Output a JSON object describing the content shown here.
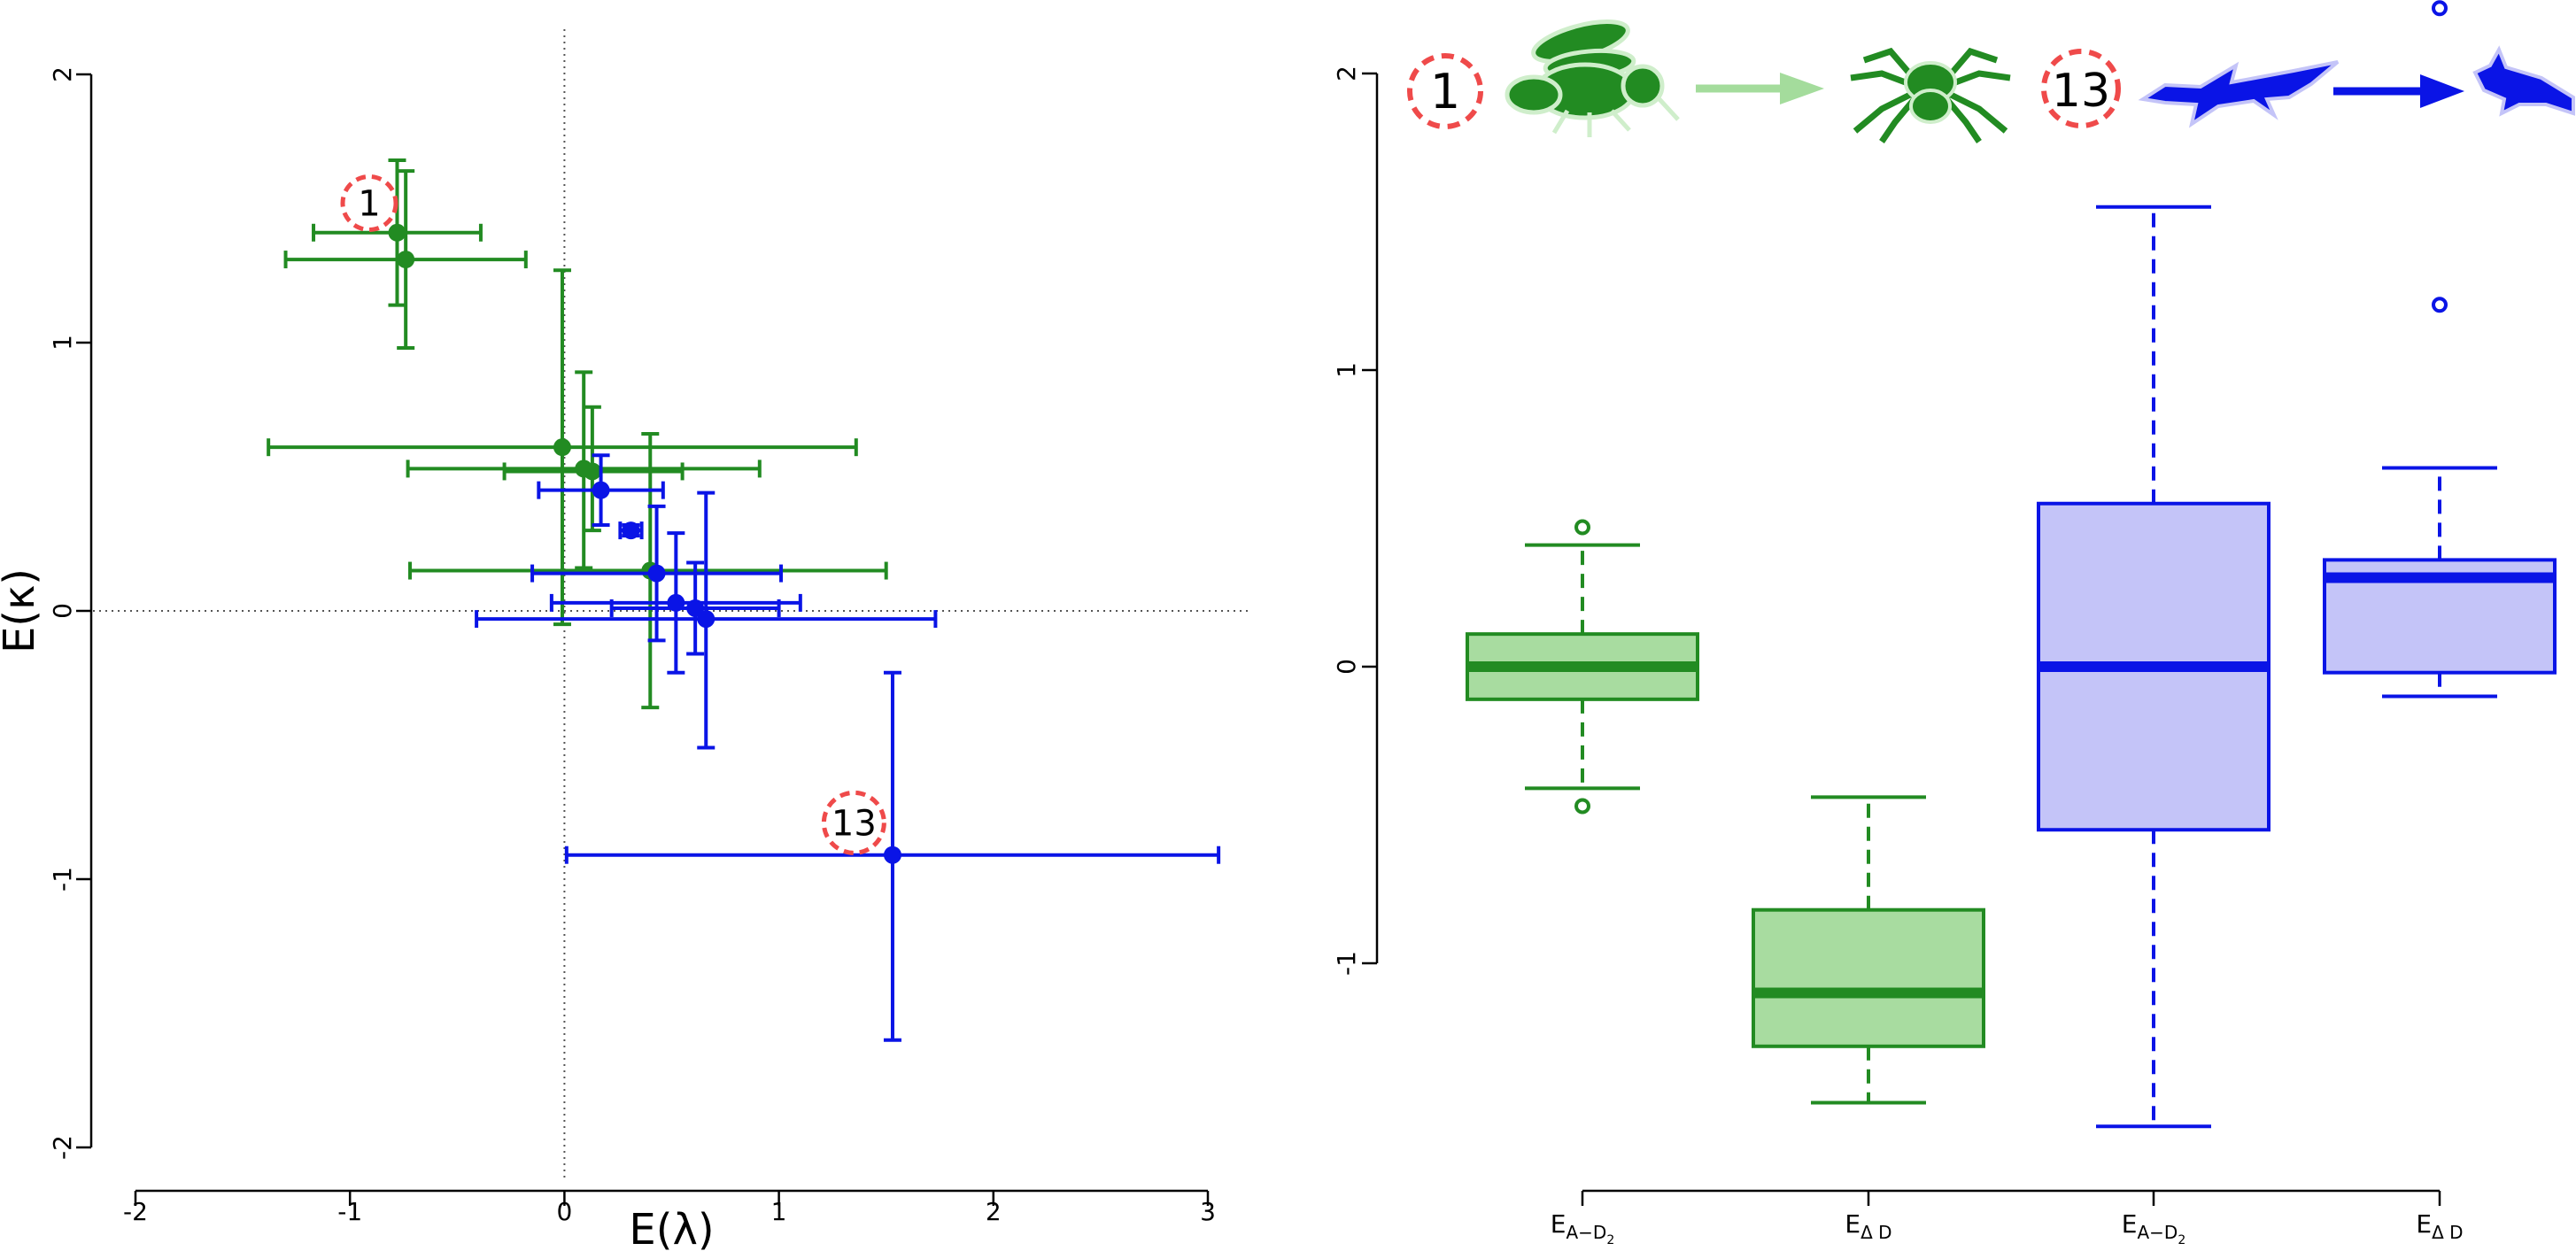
{
  "colors": {
    "green": "#228b22",
    "green_fill": "#a8dca0",
    "green_arrow": "#a4dc9c",
    "blue": "#0a14e6",
    "blue_fill": "#c4c4f8",
    "red": "#ef4a4a",
    "axis": "#000000",
    "refline": "#555555"
  },
  "chart_data": [
    {
      "type": "scatter",
      "title": "",
      "xlabel": "E(λ)",
      "ylabel": "E(κ)",
      "xlim": [
        -2,
        3
      ],
      "ylim": [
        -2,
        2
      ],
      "x_ticks": [
        "-2",
        "-1",
        "0",
        "1",
        "2",
        "3"
      ],
      "y_ticks": [
        "-2",
        "-1",
        "0",
        "1",
        "2"
      ],
      "reference_lines": {
        "x": 0,
        "y": 0,
        "style": "dotted"
      },
      "grid": false,
      "error_bars": true,
      "series": [
        {
          "color": "green",
          "points": [
            {
              "x": -0.78,
              "y": 1.41,
              "x_lo": -1.17,
              "x_hi": -0.39,
              "y_lo": 1.14,
              "y_hi": 1.68
            },
            {
              "x": -0.74,
              "y": 1.31,
              "x_lo": -1.3,
              "x_hi": -0.18,
              "y_lo": 0.98,
              "y_hi": 1.64
            },
            {
              "x": -0.01,
              "y": 0.61,
              "x_lo": -1.38,
              "x_hi": 1.36,
              "y_lo": -0.05,
              "y_hi": 1.27
            },
            {
              "x": 0.09,
              "y": 0.53,
              "x_lo": -0.73,
              "x_hi": 0.91,
              "y_lo": 0.16,
              "y_hi": 0.89
            },
            {
              "x": 0.13,
              "y": 0.52,
              "x_lo": -0.28,
              "x_hi": 0.55,
              "y_lo": 0.3,
              "y_hi": 0.76
            },
            {
              "x": 0.4,
              "y": 0.15,
              "x_lo": -0.72,
              "x_hi": 1.5,
              "y_lo": -0.36,
              "y_hi": 0.66
            }
          ]
        },
        {
          "color": "blue",
          "points": [
            {
              "x": 0.17,
              "y": 0.45,
              "x_lo": -0.12,
              "x_hi": 0.46,
              "y_lo": 0.32,
              "y_hi": 0.58
            },
            {
              "x": 0.31,
              "y": 0.3,
              "x_lo": 0.26,
              "x_hi": 0.36,
              "y_lo": 0.28,
              "y_hi": 0.32
            },
            {
              "x": 0.43,
              "y": 0.14,
              "x_lo": -0.15,
              "x_hi": 1.01,
              "y_lo": -0.11,
              "y_hi": 0.39
            },
            {
              "x": 0.52,
              "y": 0.03,
              "x_lo": -0.06,
              "x_hi": 1.1,
              "y_lo": -0.23,
              "y_hi": 0.29
            },
            {
              "x": 0.61,
              "y": 0.01,
              "x_lo": 0.22,
              "x_hi": 1.0,
              "y_lo": -0.16,
              "y_hi": 0.18
            },
            {
              "x": 0.66,
              "y": -0.03,
              "x_lo": -0.41,
              "x_hi": 1.73,
              "y_lo": -0.51,
              "y_hi": 0.44
            },
            {
              "x": 1.53,
              "y": -0.91,
              "x_lo": 0.01,
              "x_hi": 3.05,
              "y_lo": -1.6,
              "y_hi": -0.23
            }
          ]
        }
      ],
      "annotations": [
        {
          "label": "1",
          "x": -0.91,
          "y": 1.52,
          "style": "dashed red circle"
        },
        {
          "label": "13",
          "x": 1.35,
          "y": -0.79,
          "style": "dashed red circle"
        }
      ]
    },
    {
      "type": "box",
      "title": "",
      "xlabel": "",
      "ylabel": "",
      "ylim": [
        -1.7,
        2.2
      ],
      "y_ticks": [
        "-1",
        "0",
        "1",
        "2"
      ],
      "grid": false,
      "boxes": [
        {
          "label": "E",
          "sub": "A−D",
          "sub2": "2",
          "color": "green",
          "whisker_low": -0.41,
          "q1": -0.11,
          "median": 0.0,
          "q3": 0.11,
          "whisker_high": 0.41,
          "outliers": [
            0.47,
            -0.47
          ]
        },
        {
          "label": "E",
          "sub": "Δ D",
          "sub2": "",
          "color": "green",
          "whisker_low": -1.47,
          "q1": -1.28,
          "median": -1.1,
          "q3": -0.82,
          "whisker_high": -0.44,
          "outliers": []
        },
        {
          "label": "E",
          "sub": "A−D",
          "sub2": "2",
          "color": "blue",
          "whisker_low": -1.55,
          "q1": -0.55,
          "median": 0.0,
          "q3": 0.55,
          "whisker_high": 1.55,
          "outliers": []
        },
        {
          "label": "E",
          "sub": "Δ D",
          "sub2": "",
          "color": "blue",
          "whisker_low": -0.1,
          "q1": -0.02,
          "median": 0.3,
          "q3": 0.36,
          "whisker_high": 0.67,
          "outliers": [
            1.22,
            2.22
          ]
        }
      ],
      "header": [
        {
          "kind": "badge",
          "label": "1"
        },
        {
          "kind": "fly-icon",
          "color": "green"
        },
        {
          "kind": "arrow",
          "color": "green_arrow"
        },
        {
          "kind": "spider-icon",
          "color": "green"
        },
        {
          "kind": "badge",
          "label": "13"
        },
        {
          "kind": "shark-icon",
          "color": "blue"
        },
        {
          "kind": "arrow",
          "color": "blue"
        },
        {
          "kind": "small-shark-icon",
          "color": "blue"
        }
      ]
    }
  ]
}
